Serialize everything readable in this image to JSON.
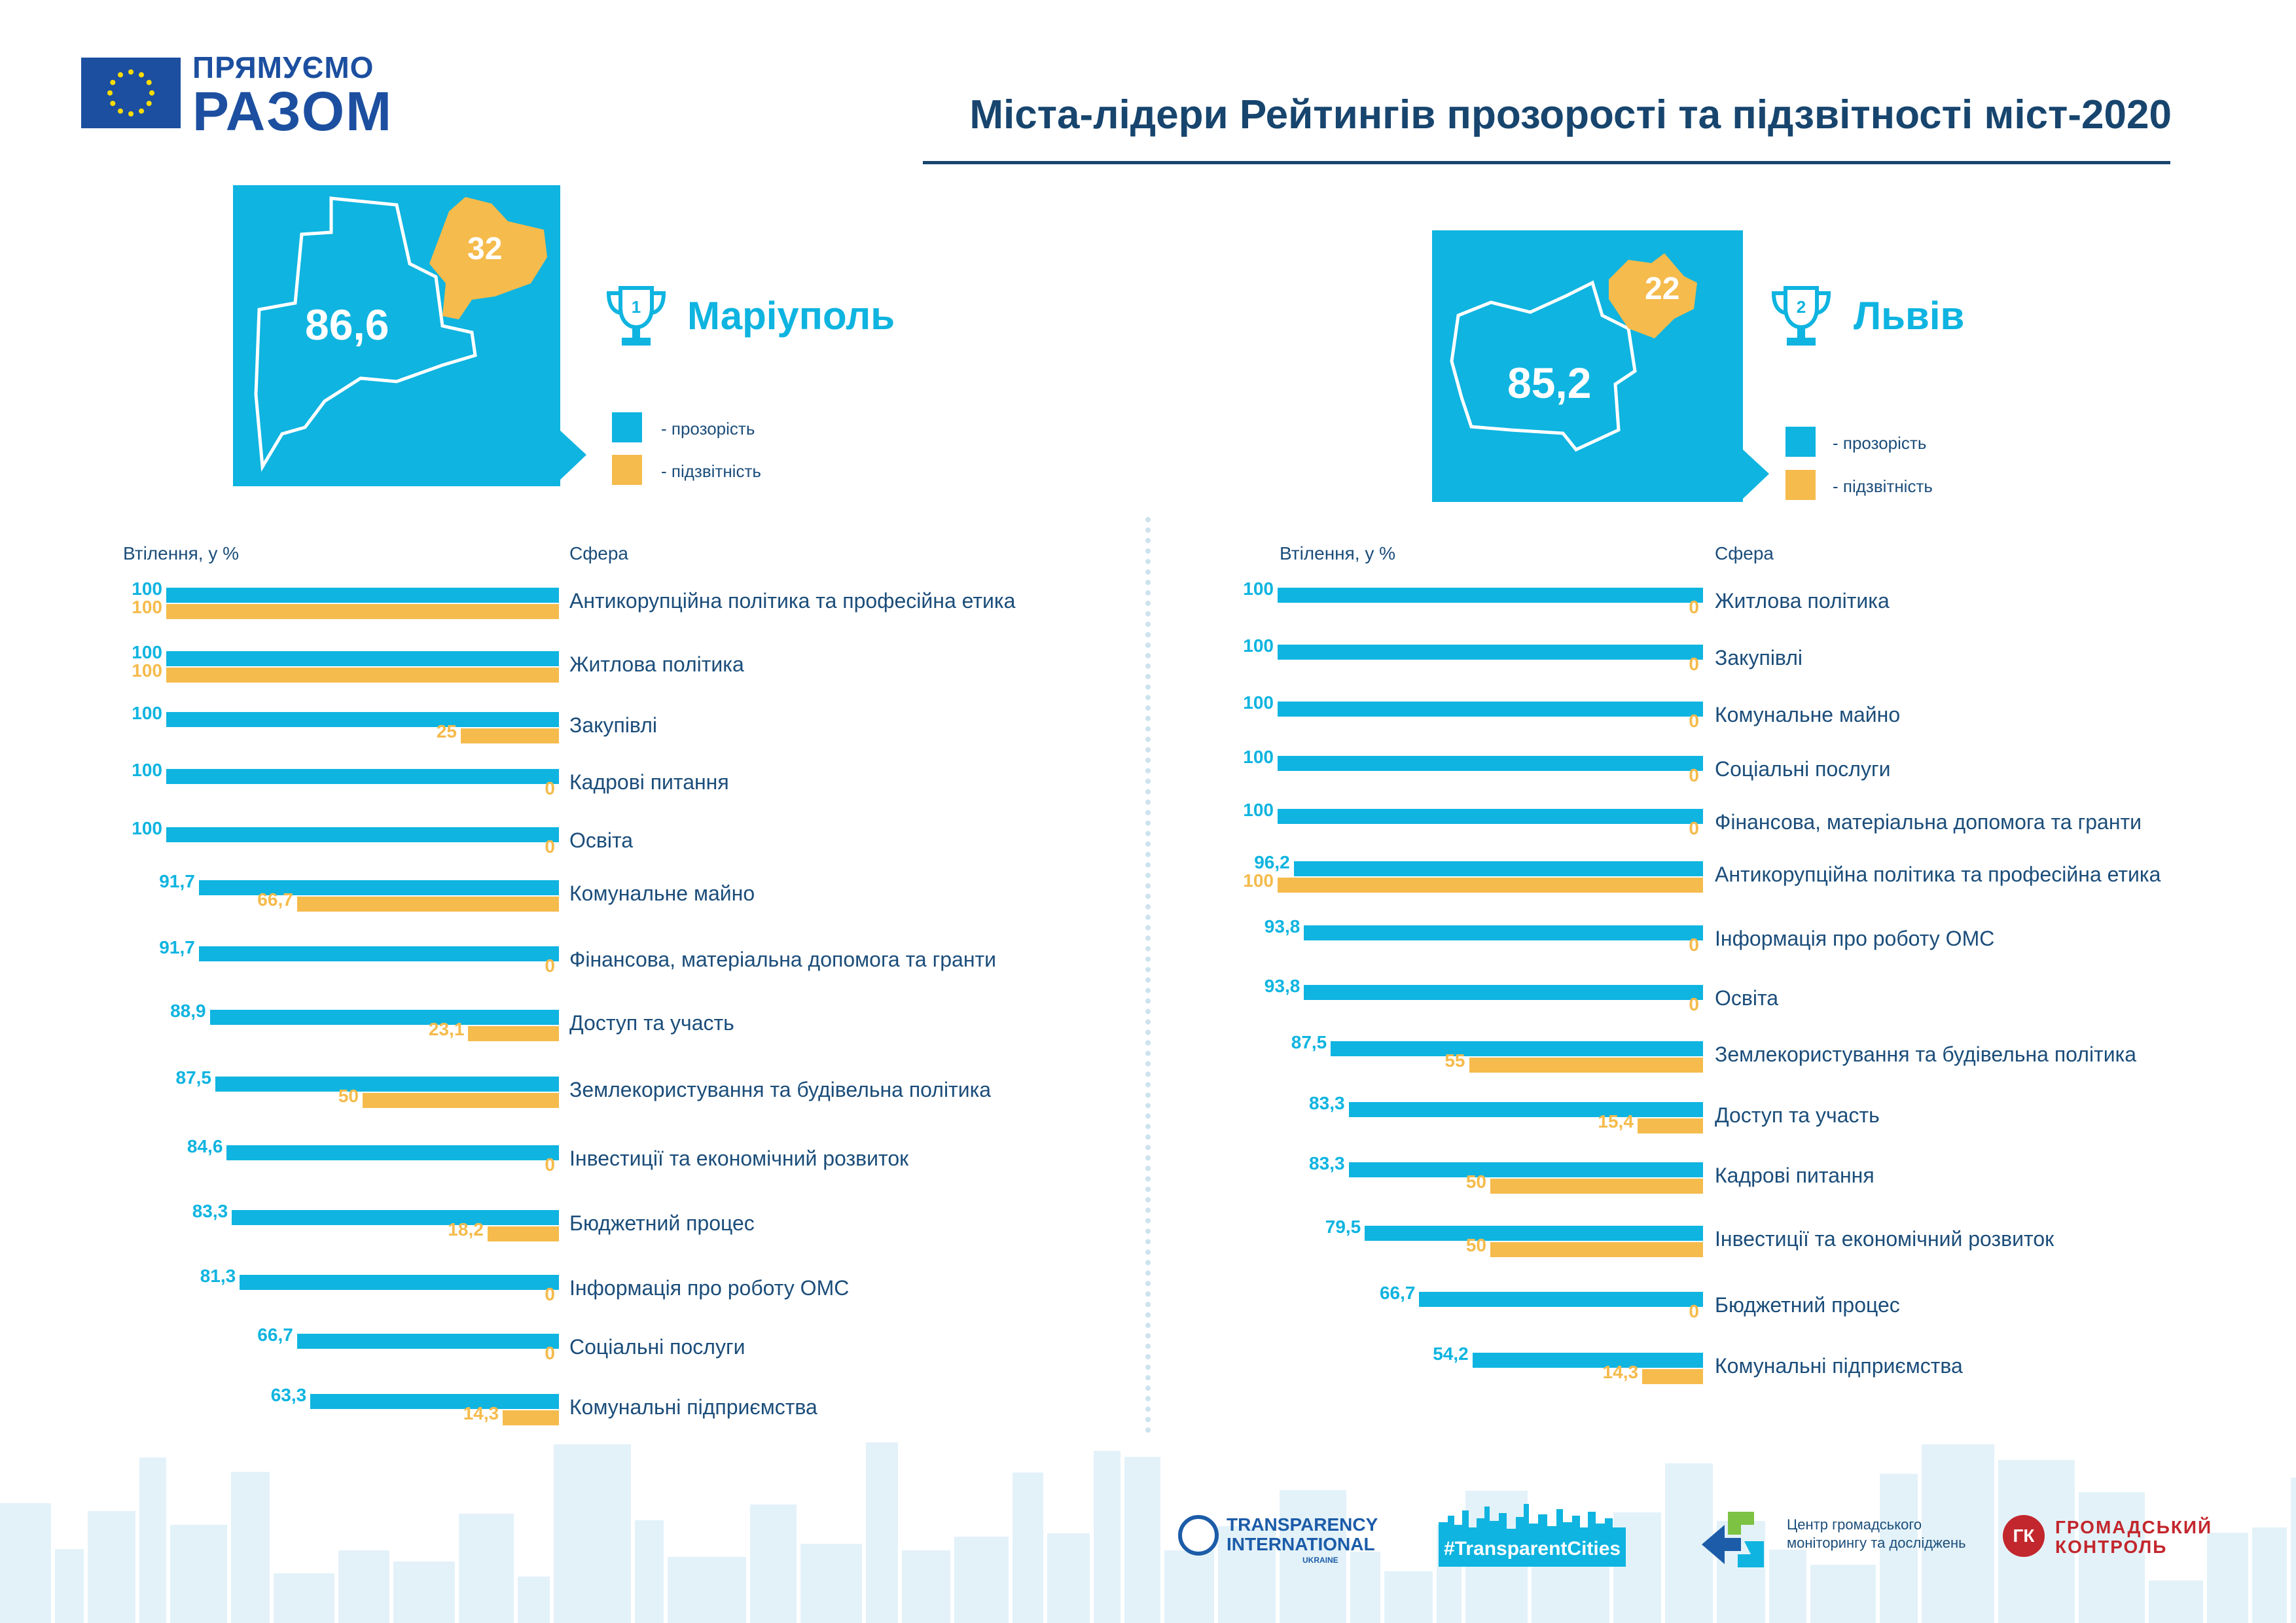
{
  "header": {
    "logo_line1": "ПРЯМУЄМО",
    "logo_line2": "РАЗОМ",
    "title": "Міста-лідери Рейтингів прозорості та підзвітності міст-2020"
  },
  "colors": {
    "transparency": "#0fb4e0",
    "accountability": "#f5bb4c",
    "title": "#17456e"
  },
  "cities": [
    {
      "rank": "1",
      "name": "Маріуполь",
      "score": "86,6",
      "badge": "32",
      "legend": {
        "transparency": "- прозорість",
        "accountability": "- підзвітність"
      },
      "col_left": "Втілення, у %",
      "col_right": "Сфера"
    },
    {
      "rank": "2",
      "name": "Львів",
      "score": "85,2",
      "badge": "22",
      "legend": {
        "transparency": "- прозорість",
        "accountability": "- підзвітність"
      },
      "col_left": "Втілення, у %",
      "col_right": "Сфера"
    }
  ],
  "chart_data": [
    {
      "type": "bar",
      "title": "Маріуполь",
      "xlabel": "Втілення, у %",
      "ylabel": "Сфера",
      "xlim": [
        0,
        100
      ],
      "categories": [
        "Антикорупційна політика та професійна етика",
        "Житлова політика",
        "Закупівлі",
        "Кадрові питання",
        "Освіта",
        "Комунальне майно",
        "Фінансова, матеріальна допомога та гранти",
        "Доступ та участь",
        "Землекористування та будівельна політика",
        "Інвестиції та економічний розвиток",
        "Бюджетний процес",
        "Інформація про роботу ОМС",
        "Соціальні послуги",
        "Комунальні підприємства"
      ],
      "series": [
        {
          "name": "прозорість",
          "values": [
            100,
            100,
            100,
            100,
            100,
            91.7,
            91.7,
            88.9,
            87.5,
            84.6,
            83.3,
            81.3,
            66.7,
            63.3
          ],
          "labels": [
            "100",
            "100",
            "100",
            "100",
            "100",
            "91,7",
            "91,7",
            "88,9",
            "87,5",
            "84,6",
            "83,3",
            "81,3",
            "66,7",
            "63,3"
          ]
        },
        {
          "name": "підзвітність",
          "values": [
            100,
            100,
            25,
            0,
            0,
            66.7,
            0,
            23.1,
            50,
            0,
            18.2,
            0,
            0,
            14.3
          ],
          "labels": [
            "100",
            "100",
            "25",
            "0",
            "0",
            "66,7",
            "0",
            "23,1",
            "50",
            "0",
            "18,2",
            "0",
            "0",
            "14,3"
          ]
        }
      ]
    },
    {
      "type": "bar",
      "title": "Львів",
      "xlabel": "Втілення, у %",
      "ylabel": "Сфера",
      "xlim": [
        0,
        100
      ],
      "categories": [
        "Житлова політика",
        "Закупівлі",
        "Комунальне майно",
        "Соціальні послуги",
        "Фінансова, матеріальна допомога та гранти",
        "Антикорупційна політика та професійна етика",
        "Інформація про роботу ОМС",
        "Освіта",
        "Землекористування та будівельна політика",
        "Доступ та участь",
        "Кадрові питання",
        "Інвестиції та економічний розвиток",
        "Бюджетний процес",
        "Комунальні підприємства"
      ],
      "series": [
        {
          "name": "прозорість",
          "values": [
            100,
            100,
            100,
            100,
            100,
            96.2,
            93.8,
            93.8,
            87.5,
            83.3,
            83.3,
            79.5,
            66.7,
            54.2
          ],
          "labels": [
            "100",
            "100",
            "100",
            "100",
            "100",
            "96,2",
            "93,8",
            "93,8",
            "87,5",
            "83,3",
            "83,3",
            "79,5",
            "66,7",
            "54,2"
          ]
        },
        {
          "name": "підзвітність",
          "values": [
            0,
            0,
            0,
            0,
            0,
            100,
            0,
            0,
            55,
            15.4,
            50,
            50,
            0,
            14.3
          ],
          "labels": [
            "0",
            "0",
            "0",
            "0",
            "0",
            "100",
            "0",
            "0",
            "55",
            "15,4",
            "50",
            "50",
            "0",
            "14,3"
          ]
        }
      ]
    }
  ],
  "footer": {
    "ti_line1": "TRANSPARENCY",
    "ti_line2": "INTERNATIONAL",
    "ti_line3": "UKRAINE",
    "tc_label": "#TransparentCities",
    "cgm_line1": "Центр громадського",
    "cgm_line2": "моніторингу та досліджень",
    "gk_line1": "ГРОМАДСЬКИЙ",
    "gk_line2": "КОНТРОЛЬ",
    "gk_mark": "ГК"
  }
}
